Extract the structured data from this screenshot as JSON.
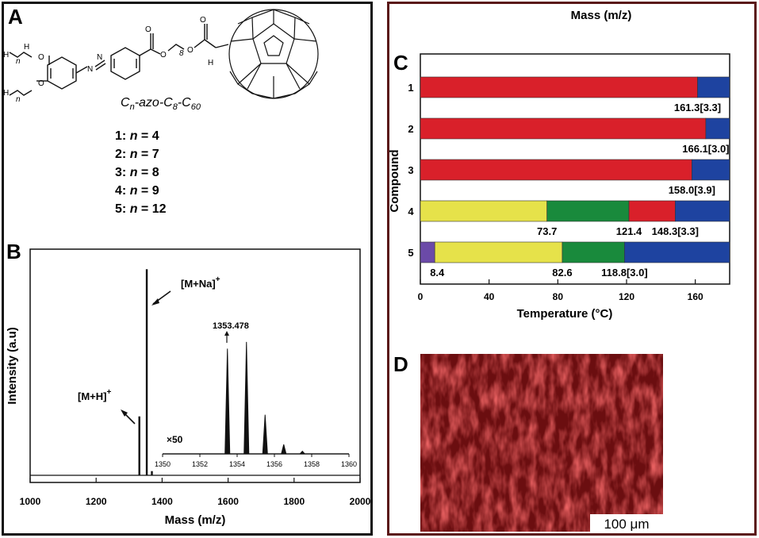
{
  "colors": {
    "melt": "#d9202a",
    "green": "#198a3c",
    "yellow": "#e6e24a",
    "blue": "#1e43a0",
    "purple": "#6b4aa8",
    "microscopy": "#6b0e10"
  },
  "panel_a": {
    "label": "A",
    "name_parts": [
      "C",
      "n",
      "-azo-C",
      "8",
      "-C",
      "60"
    ],
    "compounds": [
      {
        "id": "1:",
        "var": "n",
        "eq": " = 4"
      },
      {
        "id": "2:",
        "var": "n",
        "eq": " = 7"
      },
      {
        "id": "3:",
        "var": "n",
        "eq": " = 8"
      },
      {
        "id": "4:",
        "var": "n",
        "eq": " = 9"
      },
      {
        "id": "5:",
        "var": "n",
        "eq": " = 12"
      }
    ],
    "atoms": {
      "o": "O",
      "h": "H",
      "n": "n",
      "N": "N",
      "N_plus": "N",
      "eight": "8"
    }
  },
  "panel_b": {
    "label": "B",
    "plus": "+",
    "peak_labels": {
      "mna": "[M+Na]",
      "mh": "[M+H]",
      "inset_peak": "1353.478",
      "inset_scale": "×50"
    }
  },
  "panel_c": {
    "label": "C",
    "top_text": "Mass (m/z)"
  },
  "panel_d": {
    "label": "D",
    "scale_bar": "100 μm"
  },
  "chart_data": [
    {
      "type": "line",
      "xlabel": "Mass (m/z)",
      "ylabel": "Intensity (a.u)",
      "xlim": [
        1000,
        2000
      ],
      "ylim": [
        0,
        1.0
      ],
      "x_ticks": [
        1000,
        1200,
        1400,
        1600,
        1800,
        2000
      ],
      "peaks": [
        {
          "x": 1331,
          "y": 0.28
        },
        {
          "x": 1353.5,
          "y": 0.98
        },
        {
          "x": 1369,
          "y": 0.02
        }
      ],
      "annotations": [
        "[M+Na]+",
        "[M+H]+"
      ]
    },
    {
      "type": "line",
      "inset": true,
      "xlim": [
        1350,
        1360
      ],
      "x_ticks": [
        1350,
        1352,
        1354,
        1356,
        1358,
        1360
      ],
      "peaks": [
        {
          "x": 1353.478,
          "y": 0.78
        },
        {
          "x": 1354.5,
          "y": 0.83
        },
        {
          "x": 1355.5,
          "y": 0.29
        },
        {
          "x": 1356.5,
          "y": 0.07
        },
        {
          "x": 1357.5,
          "y": 0.02
        }
      ],
      "annotations": [
        "1353.478",
        "×50"
      ]
    },
    {
      "type": "bar",
      "orientation": "horizontal",
      "stacked": true,
      "xlabel": "Temperature (°C)",
      "ylabel": "Compound",
      "xlim": [
        0,
        180
      ],
      "x_ticks": [
        0,
        40,
        80,
        120,
        160
      ],
      "categories": [
        "1",
        "2",
        "3",
        "4",
        "5"
      ],
      "rows": [
        {
          "segments": [
            {
              "from": 0,
              "to": 161.3,
              "color": "red"
            },
            {
              "from": 161.3,
              "to": 180,
              "color": "blue"
            }
          ],
          "labels": [
            "161.3[3.3]"
          ]
        },
        {
          "segments": [
            {
              "from": 0,
              "to": 166.1,
              "color": "red"
            },
            {
              "from": 166.1,
              "to": 180,
              "color": "blue"
            }
          ],
          "labels": [
            "166.1[3.0]"
          ]
        },
        {
          "segments": [
            {
              "from": 0,
              "to": 158.0,
              "color": "red"
            },
            {
              "from": 158.0,
              "to": 180,
              "color": "blue"
            }
          ],
          "labels": [
            "158.0[3.9]"
          ]
        },
        {
          "segments": [
            {
              "from": 0,
              "to": 73.7,
              "color": "yellow"
            },
            {
              "from": 73.7,
              "to": 121.4,
              "color": "green"
            },
            {
              "from": 121.4,
              "to": 148.3,
              "color": "red"
            },
            {
              "from": 148.3,
              "to": 180,
              "color": "blue"
            }
          ],
          "labels": [
            "73.7",
            "121.4",
            "148.3[3.3]"
          ]
        },
        {
          "segments": [
            {
              "from": 0,
              "to": 8.4,
              "color": "purple"
            },
            {
              "from": 8.4,
              "to": 82.6,
              "color": "yellow"
            },
            {
              "from": 82.6,
              "to": 118.8,
              "color": "green"
            },
            {
              "from": 118.8,
              "to": 180,
              "color": "blue"
            }
          ],
          "labels": [
            "8.4",
            "82.6",
            "118.8[3.0]"
          ]
        }
      ]
    }
  ]
}
